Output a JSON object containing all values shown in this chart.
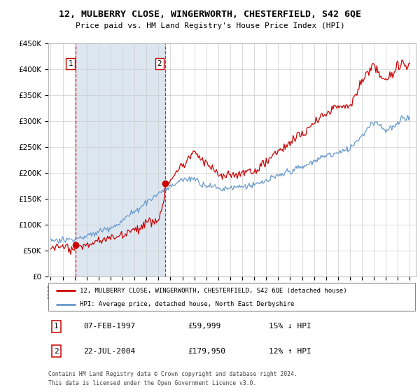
{
  "title": "12, MULBERRY CLOSE, WINGERWORTH, CHESTERFIELD, S42 6QE",
  "subtitle": "Price paid vs. HM Land Registry's House Price Index (HPI)",
  "legend_property": "12, MULBERRY CLOSE, WINGERWORTH, CHESTERFIELD, S42 6QE (detached house)",
  "legend_hpi": "HPI: Average price, detached house, North East Derbyshire",
  "transactions": [
    {
      "label": "1",
      "date": "07-FEB-1997",
      "price": "59,999",
      "year": 1997.1,
      "pct": "15% ↓ HPI"
    },
    {
      "label": "2",
      "date": "22-JUL-2004",
      "price": "179,950",
      "year": 2004.55,
      "pct": "12% ↑ HPI"
    }
  ],
  "footnote1": "Contains HM Land Registry data © Crown copyright and database right 2024.",
  "footnote2": "This data is licensed under the Open Government Licence v3.0.",
  "property_color": "#cc0000",
  "hpi_color": "#6699cc",
  "hpi_fill_color": "#dce6f1",
  "grid_color": "#cccccc",
  "dashed_color": "#cc0000",
  "plot_bg": "#ffffff",
  "ylim": [
    0,
    450000
  ],
  "xlim_start": 1994.8,
  "xlim_end": 2025.5
}
